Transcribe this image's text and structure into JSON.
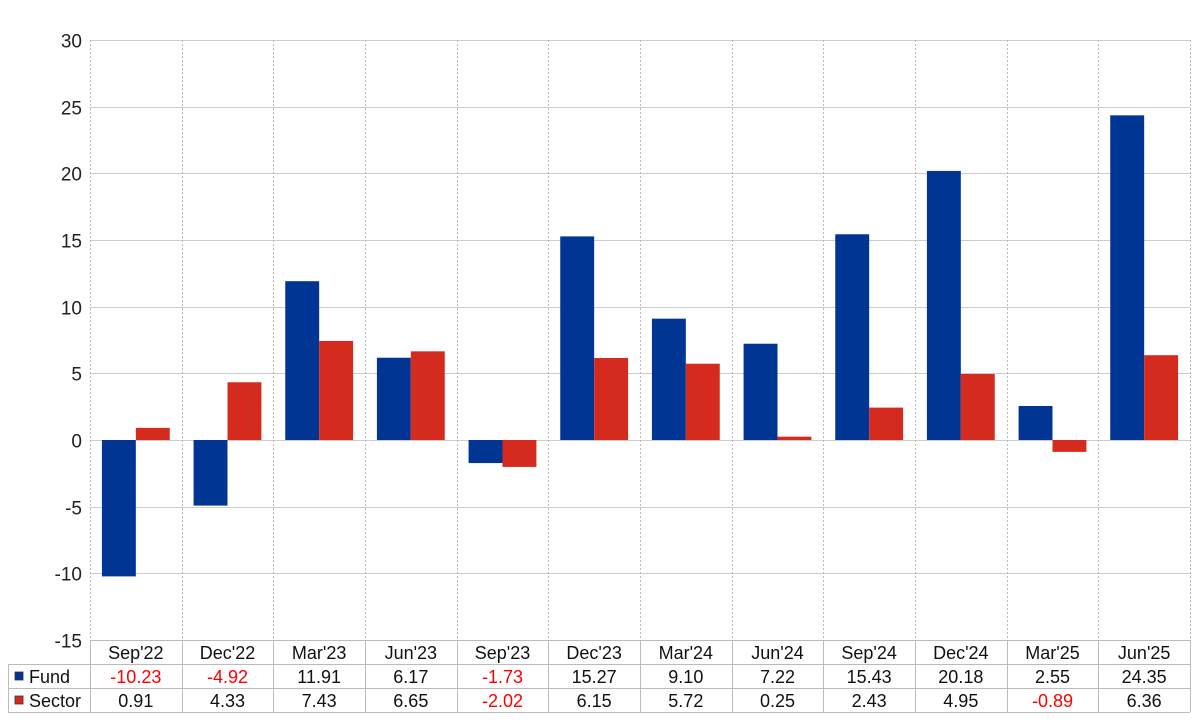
{
  "chart_data": {
    "type": "bar",
    "title": "",
    "xlabel": "",
    "ylabel": "",
    "ylim": [
      -15,
      30
    ],
    "yticks": [
      30,
      25,
      20,
      15,
      10,
      5,
      0,
      -5,
      -10,
      -15
    ],
    "grid": true,
    "legend": "table-below",
    "categories": [
      "Sep'22",
      "Dec'22",
      "Mar'23",
      "Jun'23",
      "Sep'23",
      "Dec'23",
      "Mar'24",
      "Jun'24",
      "Sep'24",
      "Dec'24",
      "Mar'25",
      "Jun'25"
    ],
    "series": [
      {
        "name": "Fund",
        "color": "#003594",
        "values": [
          -10.23,
          -4.92,
          11.91,
          6.17,
          -1.73,
          15.27,
          9.1,
          7.22,
          15.43,
          20.18,
          2.55,
          24.35
        ],
        "labels": [
          "-10.23",
          "-4.92",
          "11.91",
          "6.17",
          "-1.73",
          "15.27",
          "9.10",
          "7.22",
          "15.43",
          "20.18",
          "2.55",
          "24.35"
        ]
      },
      {
        "name": "Sector",
        "color": "#d52b1e",
        "values": [
          0.91,
          4.33,
          7.43,
          6.65,
          -2.02,
          6.15,
          5.72,
          0.25,
          2.43,
          4.95,
          -0.89,
          6.36
        ],
        "labels": [
          "0.91",
          "4.33",
          "7.43",
          "6.65",
          "-2.02",
          "6.15",
          "5.72",
          "0.25",
          "2.43",
          "4.95",
          "-0.89",
          "6.36"
        ]
      }
    ],
    "negative_label_color": "#ff0000"
  }
}
